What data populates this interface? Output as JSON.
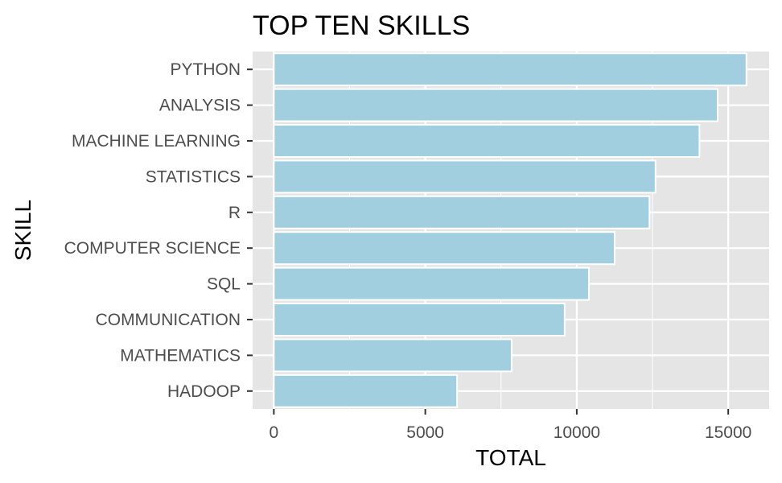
{
  "chart_data": {
    "type": "bar",
    "orientation": "horizontal",
    "title": "TOP TEN SKILLS",
    "xlabel": "TOTAL",
    "ylabel": "SKILL",
    "categories": [
      "PYTHON",
      "ANALYSIS",
      "MACHINE LEARNING",
      "STATISTICS",
      "R",
      "COMPUTER SCIENCE",
      "SQL",
      "COMMUNICATION",
      "MATHEMATICS",
      "HADOOP"
    ],
    "values": [
      15600,
      14650,
      14050,
      12600,
      12400,
      11250,
      10400,
      9600,
      7850,
      6050
    ],
    "xlim": [
      -700,
      16350
    ],
    "xticks": [
      0,
      5000,
      10000,
      15000
    ],
    "xtick_labels": [
      "0",
      "5000",
      "10000",
      "15000"
    ],
    "grid": true,
    "colors": {
      "bar_fill": "#a1cfe0",
      "bar_outline": "#ffffff",
      "panel_background": "#e5e5e5",
      "grid_major": "#ffffff",
      "tick_text": "#4d4d4d",
      "tick_mark": "#333333"
    }
  }
}
